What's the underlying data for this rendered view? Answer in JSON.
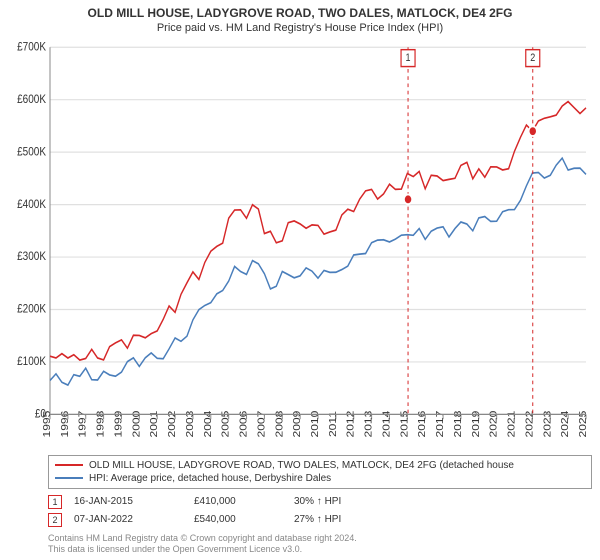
{
  "title": {
    "main": "OLD MILL HOUSE, LADYGROVE ROAD, TWO DALES, MATLOCK, DE4 2FG",
    "sub": "Price paid vs. HM Land Registry's House Price Index (HPI)"
  },
  "chart": {
    "type": "line",
    "background_color": "#ffffff",
    "grid_color": "#e0e0e0",
    "axis_color": "#888888",
    "ylim": [
      0,
      700000
    ],
    "ytick_step": 100000,
    "ytick_labels": [
      "£0",
      "£100K",
      "£200K",
      "£300K",
      "£400K",
      "£500K",
      "£600K",
      "£700K"
    ],
    "x_years": [
      1995,
      1996,
      1997,
      1998,
      1999,
      2000,
      2001,
      2002,
      2003,
      2004,
      2005,
      2006,
      2007,
      2008,
      2009,
      2010,
      2011,
      2012,
      2013,
      2014,
      2015,
      2016,
      2017,
      2018,
      2019,
      2020,
      2021,
      2022,
      2023,
      2024,
      2025
    ],
    "x_tick_fontsize": 10,
    "y_tick_fontsize": 10,
    "title_fontsize": 12,
    "series": [
      {
        "id": "property",
        "label": "OLD MILL HOUSE, LADYGROVE ROAD, TWO DALES, MATLOCK, DE4 2FG (detached house",
        "color": "#d62728",
        "values": [
          118000,
          115000,
          112000,
          120000,
          126000,
          130000,
          140000,
          150000,
          165000,
          180000,
          200000,
          230000,
          265000,
          300000,
          335000,
          370000,
          395000,
          405000,
          360000,
          345000,
          370000,
          370000,
          360000,
          360000,
          370000,
          390000,
          415000,
          430000,
          440000,
          445000,
          455000,
          460000,
          450000,
          460000,
          470000,
          475000,
          465000,
          470000,
          480000,
          510000,
          555000,
          565000,
          570000,
          605000,
          595000,
          580000
        ]
      },
      {
        "id": "hpi",
        "label": "HPI: Average price, detached house, Derbyshire Dales",
        "color": "#4a7ebb",
        "values": [
          82000,
          80000,
          78000,
          82000,
          86000,
          90000,
          96000,
          104000,
          115000,
          125000,
          140000,
          160000,
          185000,
          212000,
          240000,
          265000,
          285000,
          300000,
          268000,
          258000,
          275000,
          278000,
          270000,
          272000,
          280000,
          295000,
          313000,
          328000,
          340000,
          345000,
          355000,
          360000,
          352000,
          358000,
          368000,
          375000,
          368000,
          372000,
          385000,
          410000,
          448000,
          458000,
          462000,
          490000,
          480000,
          470000
        ]
      }
    ],
    "markers": [
      {
        "id": "m1",
        "label": "1",
        "year": 2015.04,
        "value": 410000,
        "color": "#d62728"
      },
      {
        "id": "m2",
        "label": "2",
        "year": 2022.02,
        "value": 540000,
        "color": "#d62728"
      }
    ]
  },
  "transactions": [
    {
      "badge": "1",
      "badge_color": "#d62728",
      "date": "16-JAN-2015",
      "price": "£410,000",
      "pct": "30%",
      "arrow": "↑",
      "vs": "HPI"
    },
    {
      "badge": "2",
      "badge_color": "#d62728",
      "date": "07-JAN-2022",
      "price": "£540,000",
      "pct": "27%",
      "arrow": "↑",
      "vs": "HPI"
    }
  ],
  "footer": {
    "line1": "Contains HM Land Registry data © Crown copyright and database right 2024.",
    "line2": "This data is licensed under the Open Government Licence v3.0."
  }
}
